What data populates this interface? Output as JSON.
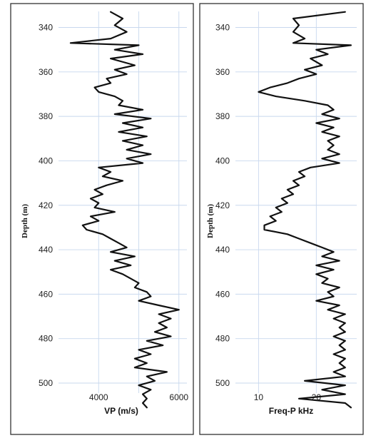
{
  "chart_data": [
    {
      "type": "line",
      "orientation": "vertical-depth",
      "ylabel": "Depth (m)",
      "xlabel": "VP (m/s)",
      "y_ticks": [
        "340",
        "360",
        "380",
        "400",
        "420",
        "440",
        "460",
        "480",
        "500"
      ],
      "x_ticks": [
        "4000",
        "6000"
      ],
      "ylim": [
        513,
        332
      ],
      "xlim": [
        3000,
        6200
      ],
      "y_grid": [
        340,
        360,
        380,
        400,
        420,
        440,
        460,
        480,
        500
      ],
      "x_grid": [
        4000,
        5000,
        6000
      ],
      "series": [
        {
          "depth": [
            333,
            336,
            339,
            342,
            345,
            347,
            348,
            350,
            352,
            354,
            357,
            359,
            361,
            363,
            365,
            367,
            369,
            371,
            373,
            375,
            377,
            379,
            381,
            383,
            385,
            387,
            389,
            391,
            393,
            395,
            397,
            399,
            401,
            403,
            405,
            407,
            409,
            411,
            413,
            415,
            417,
            419,
            421,
            423,
            425,
            427,
            429,
            431,
            433,
            435,
            437,
            439,
            441,
            443,
            445,
            447,
            449,
            451,
            453,
            455,
            457,
            459,
            461,
            463,
            465,
            467,
            469,
            471,
            473,
            475,
            477,
            479,
            481,
            483,
            485,
            487,
            489,
            491,
            493,
            495,
            497,
            499,
            501,
            503,
            505,
            507,
            509,
            511
          ],
          "values": [
            4300,
            4600,
            4400,
            4700,
            4300,
            3300,
            5000,
            4400,
            5100,
            4300,
            4900,
            4400,
            4700,
            4200,
            4300,
            3900,
            4000,
            4400,
            4600,
            4500,
            5100,
            4400,
            5300,
            4600,
            5100,
            4500,
            5200,
            4600,
            5100,
            4700,
            5300,
            4700,
            5100,
            4000,
            4300,
            4100,
            4600,
            4200,
            3900,
            4100,
            3800,
            4000,
            3900,
            4400,
            3800,
            4000,
            3600,
            3700,
            4100,
            4300,
            4500,
            4700,
            4300,
            4900,
            4400,
            4800,
            4300,
            4600,
            4800,
            5000,
            4900,
            5200,
            5300,
            5000,
            5500,
            6000,
            5500,
            5800,
            5500,
            5700,
            5400,
            5800,
            5200,
            5600,
            5000,
            5300,
            4900,
            5200,
            4900,
            5700,
            5200,
            5400,
            5000,
            5300,
            5100,
            5200,
            5100,
            5200
          ]
        }
      ]
    },
    {
      "type": "line",
      "orientation": "vertical-depth",
      "ylabel": "Depth (m)",
      "xlabel": "Freq-P kHz",
      "y_ticks": [
        "340",
        "360",
        "380",
        "400",
        "420",
        "440",
        "460",
        "480",
        "500"
      ],
      "x_ticks": [
        "10",
        "20"
      ],
      "ylim": [
        513,
        332
      ],
      "xlim": [
        6,
        27
      ],
      "y_grid": [
        340,
        360,
        380,
        400,
        420,
        440,
        460,
        480,
        500
      ],
      "x_grid": [
        10,
        20
      ],
      "series": [
        {
          "depth": [
            333,
            336,
            339,
            342,
            345,
            347,
            348,
            350,
            352,
            354,
            357,
            359,
            361,
            363,
            365,
            367,
            369,
            371,
            373,
            375,
            377,
            379,
            381,
            383,
            385,
            387,
            389,
            391,
            393,
            395,
            397,
            399,
            401,
            403,
            405,
            407,
            409,
            411,
            413,
            415,
            417,
            419,
            421,
            423,
            425,
            427,
            429,
            431,
            433,
            435,
            437,
            439,
            441,
            443,
            445,
            447,
            449,
            451,
            453,
            455,
            457,
            459,
            461,
            463,
            465,
            467,
            469,
            471,
            473,
            475,
            477,
            479,
            481,
            483,
            485,
            487,
            489,
            491,
            493,
            495,
            497,
            499,
            501,
            503,
            505,
            507,
            509,
            511
          ],
          "values": [
            25,
            16,
            17,
            16,
            18,
            16,
            26,
            20,
            22,
            19,
            21,
            18,
            20,
            17,
            15,
            12,
            10,
            13,
            18,
            22,
            23,
            21,
            24,
            20,
            23,
            21,
            24,
            22,
            23,
            22,
            24,
            21,
            24,
            19,
            17,
            18,
            16,
            17,
            15,
            16,
            14,
            15,
            13,
            14,
            12,
            13,
            11,
            11,
            15,
            17,
            19,
            21,
            23,
            21,
            24,
            20,
            23,
            20,
            22,
            21,
            24,
            22,
            23,
            20,
            24,
            22,
            25,
            23,
            25,
            24,
            25,
            23,
            25,
            24,
            25,
            23,
            25,
            24,
            25,
            23,
            25,
            18,
            25,
            21,
            25,
            17,
            25,
            26
          ]
        }
      ]
    }
  ]
}
